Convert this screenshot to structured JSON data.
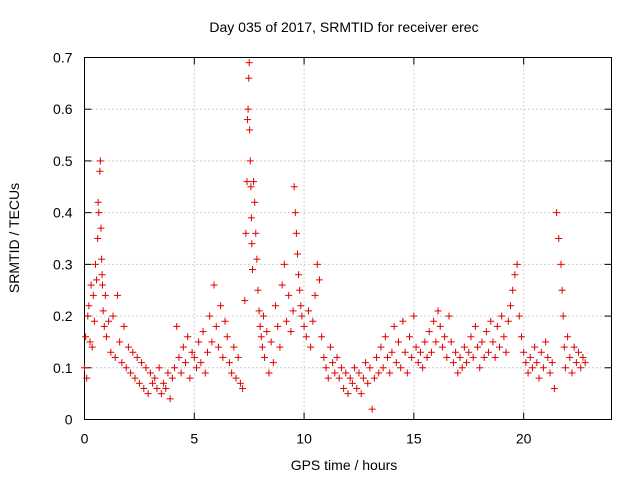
{
  "chart_data": {
    "type": "scatter",
    "title": "Day 035 of 2017, SRMTID for receiver erec",
    "xlabel": "GPS time / hours",
    "ylabel": "SRMTID / TECUs",
    "xlim": [
      0,
      24
    ],
    "ylim": [
      0,
      0.7
    ],
    "xticks": [
      0,
      5,
      10,
      15,
      20
    ],
    "yticks": [
      0,
      0.1,
      0.2,
      0.3,
      0.4,
      0.5,
      0.6,
      0.7
    ],
    "xtick_labels": [
      "0",
      "5",
      "10",
      "15",
      "20"
    ],
    "ytick_labels": [
      "0",
      "0.1",
      "0.2",
      "0.3",
      "0.4",
      "0.5",
      "0.6",
      "0.7"
    ],
    "grid": true,
    "marker": "+",
    "color": "#e00000",
    "series": [
      {
        "name": "SRMTID",
        "x": [
          0.0,
          0.05,
          0.1,
          0.15,
          0.2,
          0.25,
          0.3,
          0.35,
          0.4,
          0.45,
          0.5,
          0.55,
          0.6,
          0.62,
          0.65,
          0.7,
          0.72,
          0.75,
          0.78,
          0.8,
          0.82,
          0.85,
          0.9,
          0.95,
          1.0,
          1.1,
          1.2,
          1.3,
          1.4,
          1.5,
          1.6,
          1.7,
          1.8,
          1.9,
          2.0,
          2.1,
          2.2,
          2.3,
          2.4,
          2.5,
          2.6,
          2.7,
          2.8,
          2.9,
          3.0,
          3.1,
          3.2,
          3.3,
          3.4,
          3.5,
          3.6,
          3.7,
          3.8,
          3.9,
          4.0,
          4.1,
          4.2,
          4.3,
          4.4,
          4.5,
          4.6,
          4.7,
          4.8,
          4.9,
          5.0,
          5.1,
          5.2,
          5.3,
          5.4,
          5.5,
          5.6,
          5.7,
          5.8,
          5.9,
          6.0,
          6.1,
          6.2,
          6.3,
          6.4,
          6.5,
          6.6,
          6.7,
          6.8,
          6.9,
          7.0,
          7.1,
          7.2,
          7.3,
          7.35,
          7.4,
          7.42,
          7.45,
          7.48,
          7.5,
          7.52,
          7.55,
          7.58,
          7.6,
          7.62,
          7.65,
          7.7,
          7.75,
          7.8,
          7.85,
          7.9,
          7.95,
          8.0,
          8.05,
          8.1,
          8.15,
          8.2,
          8.3,
          8.4,
          8.5,
          8.6,
          8.7,
          8.8,
          8.9,
          9.0,
          9.1,
          9.2,
          9.3,
          9.4,
          9.5,
          9.55,
          9.6,
          9.65,
          9.7,
          9.75,
          9.8,
          9.85,
          9.9,
          10.0,
          10.1,
          10.2,
          10.3,
          10.4,
          10.5,
          10.6,
          10.7,
          10.8,
          10.9,
          11.0,
          11.1,
          11.2,
          11.3,
          11.4,
          11.5,
          11.6,
          11.7,
          11.8,
          11.9,
          12.0,
          12.1,
          12.2,
          12.3,
          12.4,
          12.5,
          12.6,
          12.7,
          12.8,
          12.9,
          13.0,
          13.1,
          13.2,
          13.3,
          13.4,
          13.5,
          13.6,
          13.7,
          13.8,
          13.9,
          14.0,
          14.1,
          14.2,
          14.3,
          14.4,
          14.5,
          14.6,
          14.7,
          14.8,
          14.9,
          15.0,
          15.1,
          15.2,
          15.3,
          15.4,
          15.5,
          15.6,
          15.7,
          15.8,
          15.9,
          16.0,
          16.1,
          16.2,
          16.3,
          16.4,
          16.5,
          16.6,
          16.7,
          16.8,
          16.9,
          17.0,
          17.1,
          17.2,
          17.3,
          17.4,
          17.5,
          17.6,
          17.7,
          17.8,
          17.9,
          18.0,
          18.1,
          18.2,
          18.3,
          18.4,
          18.5,
          18.6,
          18.7,
          18.8,
          18.9,
          19.0,
          19.1,
          19.2,
          19.3,
          19.4,
          19.5,
          19.6,
          19.7,
          19.8,
          19.9,
          20.0,
          20.1,
          20.2,
          20.3,
          20.4,
          20.5,
          20.6,
          20.7,
          20.8,
          20.9,
          21.0,
          21.1,
          21.2,
          21.3,
          21.4,
          21.5,
          21.6,
          21.7,
          21.75,
          21.8,
          21.85,
          21.9,
          22.0,
          22.1,
          22.2,
          22.3,
          22.4,
          22.5,
          22.6,
          22.7,
          22.8
        ],
        "y": [
          0.1,
          0.16,
          0.08,
          0.2,
          0.22,
          0.15,
          0.26,
          0.14,
          0.24,
          0.19,
          0.3,
          0.27,
          0.35,
          0.42,
          0.4,
          0.48,
          0.5,
          0.37,
          0.31,
          0.28,
          0.26,
          0.21,
          0.18,
          0.24,
          0.16,
          0.19,
          0.13,
          0.2,
          0.12,
          0.24,
          0.15,
          0.11,
          0.18,
          0.1,
          0.14,
          0.09,
          0.13,
          0.08,
          0.12,
          0.07,
          0.11,
          0.06,
          0.1,
          0.05,
          0.09,
          0.07,
          0.08,
          0.06,
          0.1,
          0.05,
          0.07,
          0.06,
          0.09,
          0.04,
          0.08,
          0.1,
          0.18,
          0.12,
          0.09,
          0.14,
          0.11,
          0.16,
          0.08,
          0.13,
          0.12,
          0.1,
          0.15,
          0.11,
          0.17,
          0.09,
          0.13,
          0.2,
          0.15,
          0.26,
          0.18,
          0.14,
          0.22,
          0.12,
          0.19,
          0.16,
          0.11,
          0.09,
          0.14,
          0.08,
          0.12,
          0.07,
          0.06,
          0.23,
          0.36,
          0.46,
          0.58,
          0.6,
          0.66,
          0.69,
          0.56,
          0.5,
          0.45,
          0.39,
          0.34,
          0.29,
          0.46,
          0.42,
          0.36,
          0.31,
          0.25,
          0.21,
          0.18,
          0.16,
          0.14,
          0.2,
          0.12,
          0.17,
          0.09,
          0.15,
          0.11,
          0.22,
          0.18,
          0.14,
          0.26,
          0.3,
          0.19,
          0.24,
          0.17,
          0.21,
          0.45,
          0.4,
          0.36,
          0.32,
          0.28,
          0.25,
          0.22,
          0.2,
          0.18,
          0.16,
          0.21,
          0.14,
          0.19,
          0.24,
          0.3,
          0.27,
          0.16,
          0.12,
          0.1,
          0.08,
          0.14,
          0.11,
          0.09,
          0.12,
          0.08,
          0.1,
          0.06,
          0.09,
          0.05,
          0.08,
          0.07,
          0.1,
          0.06,
          0.09,
          0.05,
          0.08,
          0.11,
          0.07,
          0.1,
          0.02,
          0.08,
          0.12,
          0.09,
          0.14,
          0.1,
          0.16,
          0.12,
          0.09,
          0.13,
          0.18,
          0.11,
          0.15,
          0.1,
          0.19,
          0.13,
          0.09,
          0.16,
          0.12,
          0.2,
          0.14,
          0.11,
          0.13,
          0.1,
          0.15,
          0.12,
          0.17,
          0.13,
          0.19,
          0.15,
          0.21,
          0.18,
          0.14,
          0.16,
          0.12,
          0.2,
          0.15,
          0.11,
          0.13,
          0.09,
          0.12,
          0.1,
          0.14,
          0.11,
          0.13,
          0.16,
          0.12,
          0.18,
          0.14,
          0.1,
          0.15,
          0.12,
          0.17,
          0.13,
          0.19,
          0.15,
          0.12,
          0.18,
          0.14,
          0.2,
          0.16,
          0.13,
          0.19,
          0.22,
          0.25,
          0.28,
          0.3,
          0.2,
          0.16,
          0.13,
          0.11,
          0.09,
          0.12,
          0.1,
          0.14,
          0.11,
          0.08,
          0.13,
          0.1,
          0.15,
          0.12,
          0.09,
          0.11,
          0.06,
          0.4,
          0.35,
          0.3,
          0.25,
          0.2,
          0.14,
          0.1,
          0.16,
          0.12,
          0.09,
          0.14,
          0.11,
          0.13,
          0.1,
          0.12,
          0.11
        ]
      }
    ]
  }
}
